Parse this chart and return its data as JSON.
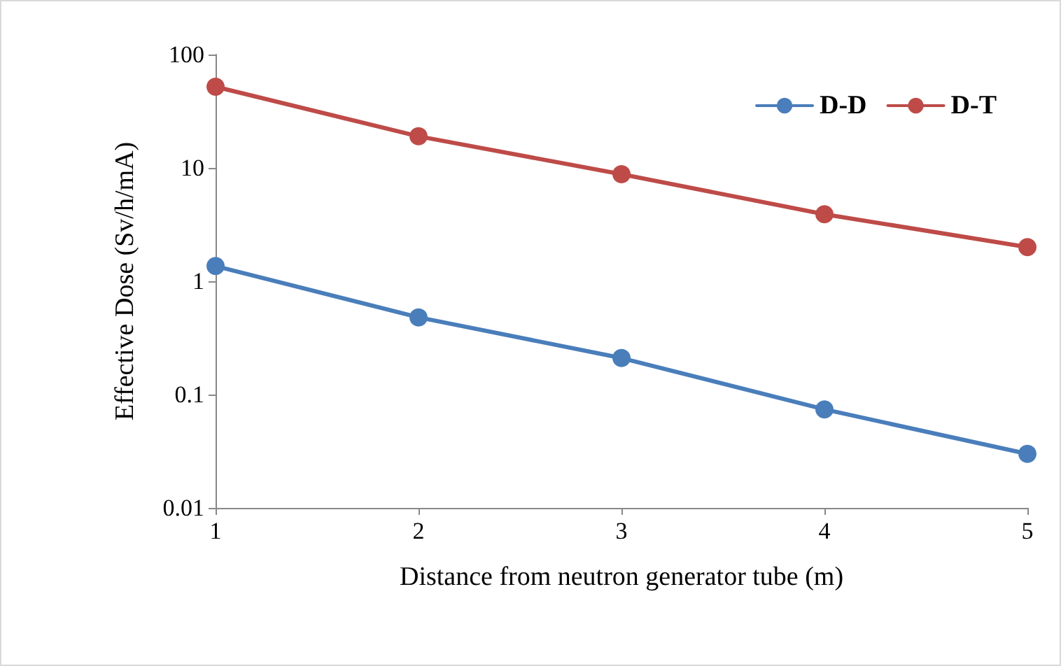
{
  "chart_data": {
    "type": "line",
    "xlabel": "Distance from neutron generator tube (m)",
    "ylabel": "Effective Dose (Sv/h/mA)",
    "x": [
      1,
      2,
      3,
      4,
      5
    ],
    "series": [
      {
        "name": "D-D",
        "color": "#4a7ebb",
        "values": [
          1.36,
          0.48,
          0.21,
          0.074,
          0.03
        ]
      },
      {
        "name": "D-T",
        "color": "#be4b48",
        "values": [
          52,
          19,
          8.8,
          3.9,
          2.0
        ]
      }
    ],
    "xlim": [
      1,
      5
    ],
    "xticks": [
      1,
      2,
      3,
      4,
      5
    ],
    "ylim": [
      0.01,
      100
    ],
    "yticks": [
      0.01,
      0.1,
      1,
      10,
      100
    ],
    "log": true,
    "grid": false,
    "legend": "top right",
    "marker": "circle",
    "line_style": "solid"
  }
}
